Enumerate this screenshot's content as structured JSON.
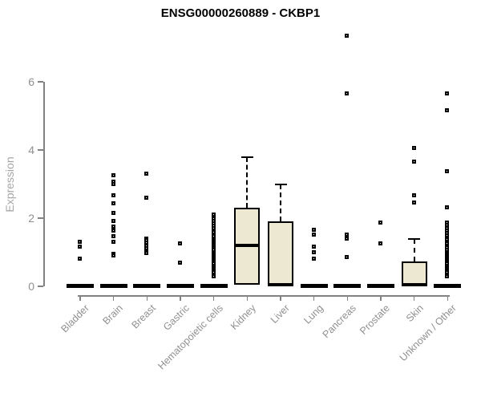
{
  "page": {
    "title": "ENSG00000260889 - CKBP1"
  },
  "chart_data": {
    "type": "boxplot",
    "title": "ENSG00000260889 - CKBP1",
    "xlabel": "",
    "ylabel": "Expression",
    "yticks": [
      0,
      2,
      4,
      6
    ],
    "ylim": [
      0,
      7.45
    ],
    "grid": false,
    "legend": null,
    "colors": {
      "box_fill": "#EDE8D1",
      "box_border": "#000000",
      "median": "#000000",
      "axis": "#828282",
      "tick_label": "#909090",
      "ylabel_color": "#A6A6A6",
      "title": "#000000",
      "background": "#FFFFFF"
    },
    "categories": [
      "Bladder",
      "Brain",
      "Breast",
      "Gastric",
      "Hematopoietic cells",
      "Kidney",
      "Liver",
      "Lung",
      "Pancreas",
      "Prostate",
      "Skin",
      "Unknown / Other"
    ],
    "boxes": [
      {
        "label": "Bladder",
        "median": 0,
        "q1": 0,
        "q3": 0,
        "whisker_low": 0,
        "whisker_high": 0,
        "outliers": [
          1.3,
          1.15,
          0.8
        ]
      },
      {
        "label": "Brain",
        "median": 0,
        "q1": 0,
        "q3": 0,
        "whisker_low": 0,
        "whisker_high": 0,
        "outliers": [
          3.25,
          3.05,
          2.98,
          2.65,
          2.42,
          2.15,
          1.9,
          1.75,
          1.62,
          1.45,
          1.3,
          0.95,
          0.9
        ]
      },
      {
        "label": "Breast",
        "median": 0,
        "q1": 0,
        "q3": 0,
        "whisker_low": 0,
        "whisker_high": 0,
        "outliers": [
          3.3,
          2.6,
          1.4,
          1.33,
          1.26,
          1.18,
          1.1,
          1.02,
          0.97
        ]
      },
      {
        "label": "Gastric",
        "median": 0,
        "q1": 0,
        "q3": 0,
        "whisker_low": 0,
        "whisker_high": 0,
        "outliers": [
          1.25,
          0.68
        ]
      },
      {
        "label": "Hematopoietic cells",
        "median": 0,
        "q1": 0,
        "q3": 0,
        "whisker_low": 0,
        "whisker_high": 0,
        "outliers": [
          2.1,
          1.97,
          1.9,
          1.83,
          1.76,
          1.7,
          1.63,
          1.57,
          1.5,
          1.45,
          1.4,
          1.35,
          1.3,
          1.25,
          1.2,
          1.15,
          1.1,
          1.05,
          1.0,
          0.95,
          0.9,
          0.85,
          0.8,
          0.75,
          0.7,
          0.65,
          0.6,
          0.55,
          0.5,
          0.45,
          0.4,
          0.28
        ]
      },
      {
        "label": "Kidney",
        "median": 1.2,
        "q1": 0.05,
        "q3": 2.3,
        "whisker_low": 0,
        "whisker_high": 3.8,
        "outliers": []
      },
      {
        "label": "Liver",
        "median": 0.04,
        "q1": 0,
        "q3": 1.9,
        "whisker_low": 0,
        "whisker_high": 3.0,
        "outliers": []
      },
      {
        "label": "Lung",
        "median": 0,
        "q1": 0,
        "q3": 0,
        "whisker_low": 0,
        "whisker_high": 0,
        "outliers": [
          1.65,
          1.5,
          1.15,
          1.0,
          0.8
        ]
      },
      {
        "label": "Pancreas",
        "median": 0,
        "q1": 0,
        "q3": 0,
        "whisker_low": 0,
        "whisker_high": 0,
        "outliers": [
          7.33,
          5.65,
          1.5,
          1.4,
          0.85
        ]
      },
      {
        "label": "Prostate",
        "median": 0,
        "q1": 0,
        "q3": 0,
        "whisker_low": 0,
        "whisker_high": 0,
        "outliers": [
          1.85,
          1.25
        ]
      },
      {
        "label": "Skin",
        "median": 0.04,
        "q1": 0,
        "q3": 0.73,
        "whisker_low": 0,
        "whisker_high": 1.4,
        "outliers": [
          4.05,
          3.65,
          2.65,
          2.45
        ]
      },
      {
        "label": "Unknown / Other",
        "median": 0,
        "q1": 0,
        "q3": 0,
        "whisker_low": 0,
        "whisker_high": 0,
        "outliers": [
          5.65,
          5.15,
          3.37,
          2.3,
          1.87,
          1.78,
          1.7,
          1.62,
          1.55,
          1.48,
          1.42,
          1.36,
          1.3,
          1.24,
          1.18,
          1.12,
          1.06,
          1.0,
          0.95,
          0.9,
          0.85,
          0.8,
          0.75,
          0.7,
          0.65,
          0.6,
          0.55,
          0.5,
          0.45,
          0.4,
          0.34,
          0.28
        ]
      }
    ]
  }
}
